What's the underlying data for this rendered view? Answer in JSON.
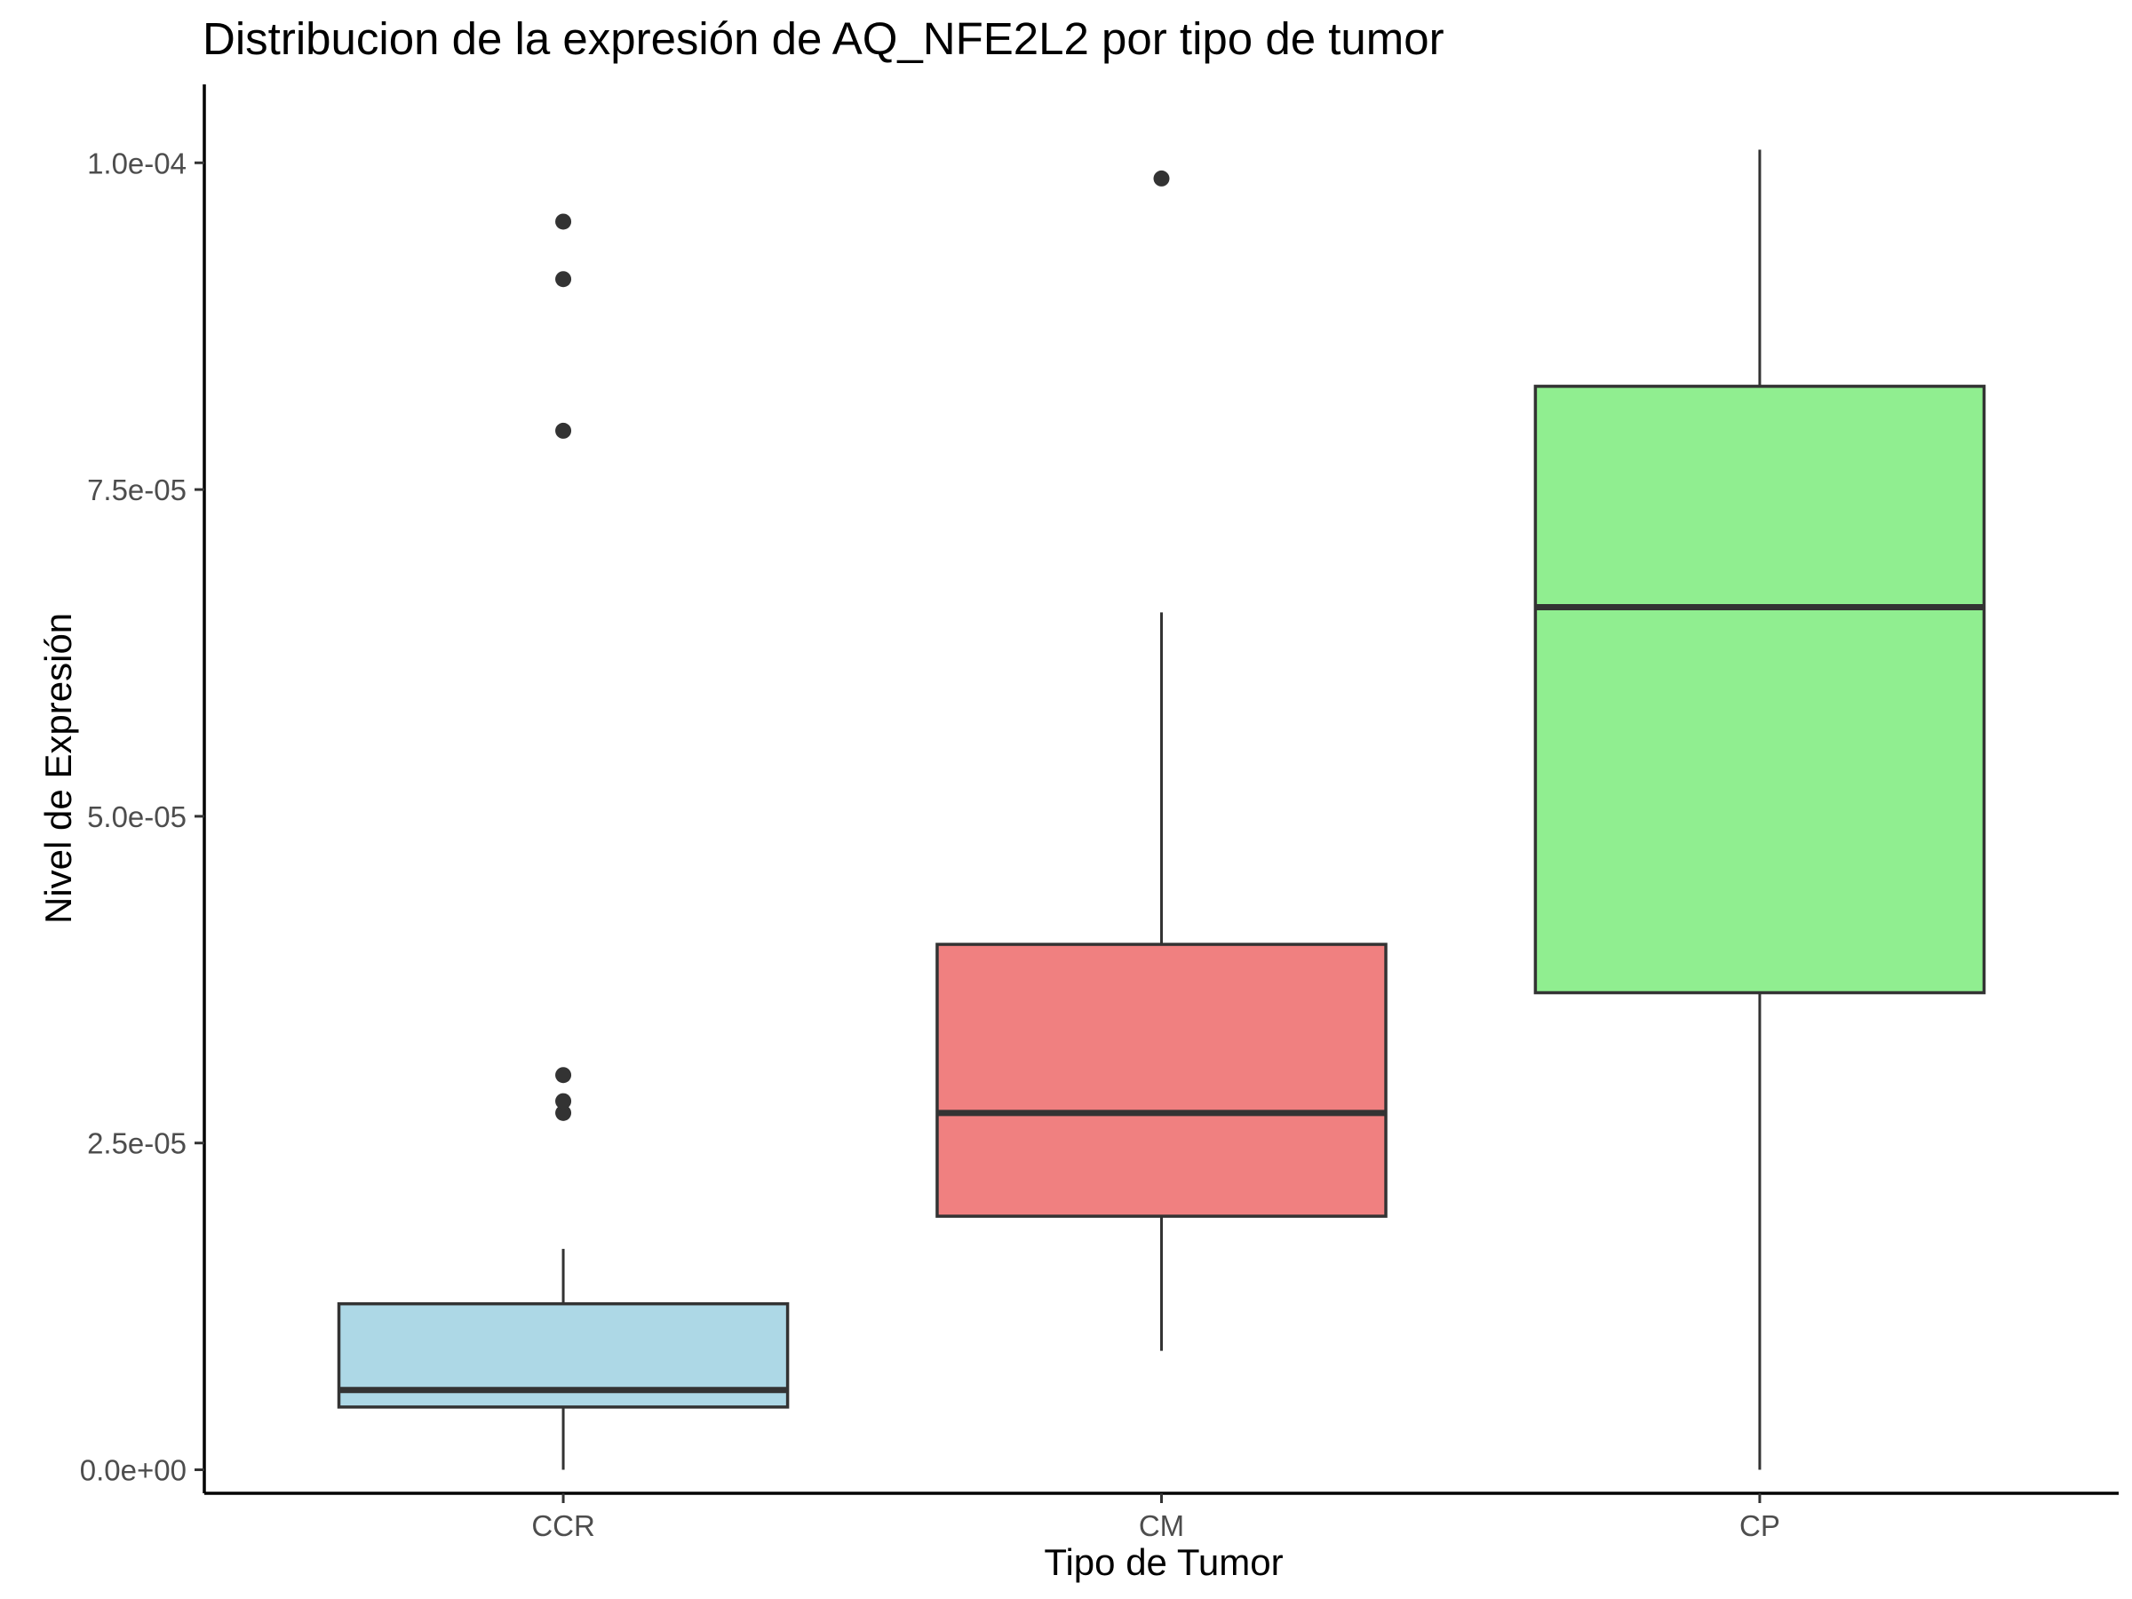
{
  "chart_data": {
    "type": "box",
    "title": "Distribucion de la expresión de AQ_NFE2L2 por tipo de tumor",
    "xlabel": "Tipo de Tumor",
    "ylabel": "Nivel de Expresión",
    "categories": [
      "CCR",
      "CM",
      "CP"
    ],
    "ylim": [
      -1.8e-06,
      0.000106
    ],
    "y_ticks": [
      0.0,
      2.5e-05,
      5e-05,
      7.5e-05,
      0.0001
    ],
    "y_tick_labels": [
      "0.0e+00",
      "2.5e-05",
      "5.0e-05",
      "7.5e-05",
      "1.0e-04"
    ],
    "grid": false,
    "legend": "none",
    "boxes": [
      {
        "category": "CCR",
        "color": "#add8e6",
        "whisker_low": 0.0,
        "q1": 4.8e-06,
        "median": 6.1e-06,
        "q3": 1.27e-05,
        "whisker_high": 1.69e-05,
        "outliers": [
          2.73e-05,
          2.82e-05,
          3.02e-05,
          7.95e-05,
          9.11e-05,
          9.55e-05
        ]
      },
      {
        "category": "CM",
        "color": "#f08080",
        "whisker_low": 9.1e-06,
        "q1": 1.94e-05,
        "median": 2.73e-05,
        "q3": 4.02e-05,
        "whisker_high": 6.56e-05,
        "outliers": [
          9.88e-05
        ]
      },
      {
        "category": "CP",
        "color": "#90ee90",
        "whisker_low": 0.0,
        "q1": 3.65e-05,
        "median": 6.6e-05,
        "q3": 8.29e-05,
        "whisker_high": 0.000101,
        "outliers": []
      }
    ]
  }
}
